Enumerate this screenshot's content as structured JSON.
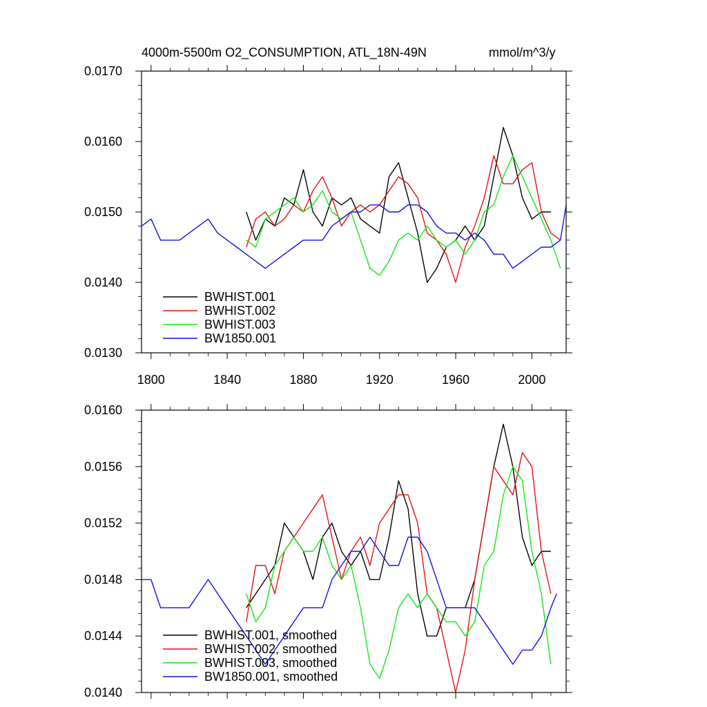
{
  "colors": {
    "BWHIST.001": "#000000",
    "BWHIST.002": "#e8110f",
    "BWHIST.003": "#11e811",
    "BW1850.001": "#1010e8"
  },
  "chart_data": [
    {
      "type": "line",
      "title": "4000m-5500m O2_CONSUMPTION, ATL_18N-49N",
      "units": "mmol/m^3/y",
      "xlim": [
        1795,
        2018
      ],
      "ylim": [
        0.013,
        0.017
      ],
      "x_ticks": [
        1800,
        1840,
        1880,
        1920,
        1960,
        2000
      ],
      "x_tick_labels": [
        "1800",
        "1840",
        "1880",
        "1920",
        "1960",
        "2000"
      ],
      "y_ticks": [
        0.013,
        0.014,
        0.015,
        0.016,
        0.017
      ],
      "y_tick_labels": [
        "0.0130",
        "0.0140",
        "0.0150",
        "0.0160",
        "0.0170"
      ],
      "legend": "bottom-left",
      "series": [
        {
          "name": "BWHIST.001",
          "label": "BWHIST.001",
          "x": [
            1850,
            1855,
            1860,
            1865,
            1870,
            1875,
            1880,
            1885,
            1890,
            1895,
            1900,
            1905,
            1910,
            1915,
            1920,
            1925,
            1930,
            1935,
            1940,
            1945,
            1950,
            1955,
            1960,
            1965,
            1970,
            1975,
            1980,
            1985,
            1990,
            1995,
            2000,
            2005,
            2010
          ],
          "y": [
            0.015,
            0.0146,
            0.0149,
            0.0148,
            0.0152,
            0.0151,
            0.0156,
            0.015,
            0.0148,
            0.0152,
            0.0151,
            0.0152,
            0.0149,
            0.0148,
            0.0147,
            0.0155,
            0.0157,
            0.0152,
            0.0147,
            0.014,
            0.0142,
            0.0145,
            0.0146,
            0.0148,
            0.0146,
            0.0148,
            0.0155,
            0.0162,
            0.0158,
            0.0152,
            0.0149,
            0.015,
            0.015
          ]
        },
        {
          "name": "BWHIST.002",
          "label": "BWHIST.002",
          "x": [
            1850,
            1855,
            1860,
            1865,
            1870,
            1875,
            1880,
            1885,
            1890,
            1895,
            1900,
            1905,
            1910,
            1915,
            1920,
            1925,
            1930,
            1935,
            1940,
            1945,
            1950,
            1955,
            1960,
            1965,
            1970,
            1975,
            1980,
            1985,
            1990,
            1995,
            2000,
            2005,
            2010,
            2015
          ],
          "y": [
            0.0145,
            0.0149,
            0.015,
            0.0148,
            0.0149,
            0.0151,
            0.015,
            0.0153,
            0.0155,
            0.0152,
            0.0148,
            0.015,
            0.0151,
            0.015,
            0.0151,
            0.0153,
            0.0155,
            0.0154,
            0.0152,
            0.0147,
            0.0146,
            0.0144,
            0.014,
            0.0145,
            0.0148,
            0.0152,
            0.0158,
            0.0154,
            0.0154,
            0.0156,
            0.0157,
            0.015,
            0.0147,
            0.0146
          ]
        },
        {
          "name": "BWHIST.003",
          "label": "BWHIST.003",
          "x": [
            1850,
            1855,
            1860,
            1865,
            1870,
            1875,
            1880,
            1885,
            1890,
            1895,
            1900,
            1905,
            1910,
            1915,
            1920,
            1925,
            1930,
            1935,
            1940,
            1945,
            1950,
            1955,
            1960,
            1965,
            1970,
            1975,
            1980,
            1985,
            1990,
            1995,
            2000,
            2005,
            2010,
            2015
          ],
          "y": [
            0.0146,
            0.0145,
            0.0149,
            0.015,
            0.0151,
            0.0152,
            0.015,
            0.0151,
            0.0153,
            0.015,
            0.0149,
            0.015,
            0.0146,
            0.0142,
            0.0141,
            0.0143,
            0.0146,
            0.0147,
            0.0146,
            0.0148,
            0.0146,
            0.0145,
            0.0146,
            0.0144,
            0.0146,
            0.015,
            0.0151,
            0.0155,
            0.0158,
            0.0155,
            0.0152,
            0.0149,
            0.0146,
            0.0142
          ]
        },
        {
          "name": "BW1850.001",
          "label": "BW1850.001",
          "x": [
            1795,
            1800,
            1805,
            1810,
            1815,
            1820,
            1825,
            1830,
            1835,
            1840,
            1845,
            1850,
            1855,
            1860,
            1865,
            1870,
            1875,
            1880,
            1885,
            1890,
            1895,
            1900,
            1905,
            1910,
            1915,
            1920,
            1925,
            1930,
            1935,
            1940,
            1945,
            1950,
            1955,
            1960,
            1965,
            1970,
            1975,
            1980,
            1985,
            1990,
            1995,
            2000,
            2005,
            2010,
            2015,
            2018
          ],
          "y": [
            0.0148,
            0.0149,
            0.0146,
            0.0146,
            0.0146,
            0.0147,
            0.0148,
            0.0149,
            0.0147,
            0.0146,
            0.0145,
            0.0144,
            0.0143,
            0.0142,
            0.0143,
            0.0144,
            0.0145,
            0.0146,
            0.0146,
            0.0146,
            0.0148,
            0.0149,
            0.015,
            0.015,
            0.0151,
            0.0151,
            0.015,
            0.015,
            0.0151,
            0.0151,
            0.015,
            0.0148,
            0.0147,
            0.0147,
            0.0146,
            0.0147,
            0.0146,
            0.0144,
            0.0144,
            0.0142,
            0.0143,
            0.0144,
            0.0145,
            0.0145,
            0.0146,
            0.0151
          ]
        }
      ]
    },
    {
      "type": "line",
      "title": "",
      "xlim": [
        1795,
        2018
      ],
      "ylim": [
        0.014,
        0.016
      ],
      "x_ticks": [
        1800,
        1840,
        1880,
        1920,
        1960,
        2000
      ],
      "y_ticks": [
        0.014,
        0.0144,
        0.0148,
        0.0152,
        0.0156,
        0.016
      ],
      "y_tick_labels": [
        "0.0140",
        "0.0144",
        "0.0148",
        "0.0152",
        "0.0156",
        "0.0160"
      ],
      "legend": "bottom-left",
      "series": [
        {
          "name": "BWHIST.001",
          "label": "BWHIST.001, smoothed",
          "x": [
            1850,
            1855,
            1860,
            1865,
            1870,
            1875,
            1880,
            1885,
            1890,
            1895,
            1900,
            1905,
            1910,
            1915,
            1920,
            1925,
            1930,
            1935,
            1940,
            1945,
            1950,
            1955,
            1960,
            1965,
            1970,
            1975,
            1980,
            1985,
            1990,
            1995,
            2000,
            2005,
            2010
          ],
          "y": [
            0.0146,
            0.0147,
            0.0148,
            0.0149,
            0.0152,
            0.0151,
            0.015,
            0.0148,
            0.0151,
            0.0152,
            0.015,
            0.0149,
            0.015,
            0.0148,
            0.0148,
            0.0151,
            0.0155,
            0.0153,
            0.0147,
            0.0144,
            0.0144,
            0.0146,
            0.0146,
            0.0146,
            0.0148,
            0.0152,
            0.0156,
            0.0159,
            0.0156,
            0.0151,
            0.0149,
            0.015,
            0.015
          ]
        },
        {
          "name": "BWHIST.002",
          "label": "BWHIST.002, smoothed",
          "x": [
            1850,
            1855,
            1860,
            1865,
            1870,
            1875,
            1880,
            1885,
            1890,
            1895,
            1900,
            1905,
            1910,
            1915,
            1920,
            1925,
            1930,
            1935,
            1940,
            1945,
            1950,
            1955,
            1960,
            1965,
            1970,
            1975,
            1980,
            1985,
            1990,
            1995,
            2000,
            2005,
            2010
          ],
          "y": [
            0.0145,
            0.0149,
            0.0149,
            0.0147,
            0.015,
            0.0151,
            0.0152,
            0.0153,
            0.0154,
            0.0151,
            0.0148,
            0.015,
            0.0151,
            0.0149,
            0.0152,
            0.0153,
            0.0154,
            0.0154,
            0.0152,
            0.0147,
            0.0146,
            0.0143,
            0.014,
            0.0143,
            0.0148,
            0.0152,
            0.0156,
            0.0155,
            0.0154,
            0.0157,
            0.0156,
            0.015,
            0.0147
          ]
        },
        {
          "name": "BWHIST.003",
          "label": "BWHIST.003, smoothed",
          "x": [
            1850,
            1855,
            1860,
            1865,
            1870,
            1875,
            1880,
            1885,
            1890,
            1895,
            1900,
            1905,
            1910,
            1915,
            1920,
            1925,
            1930,
            1935,
            1940,
            1945,
            1950,
            1955,
            1960,
            1965,
            1970,
            1975,
            1980,
            1985,
            1990,
            1995,
            2000,
            2005,
            2010
          ],
          "y": [
            0.0147,
            0.0145,
            0.0146,
            0.0149,
            0.015,
            0.0151,
            0.015,
            0.015,
            0.0151,
            0.0149,
            0.0148,
            0.0149,
            0.0146,
            0.0142,
            0.0141,
            0.0143,
            0.0146,
            0.0147,
            0.0146,
            0.0147,
            0.0146,
            0.0145,
            0.0145,
            0.0144,
            0.0145,
            0.0149,
            0.015,
            0.0154,
            0.0156,
            0.0155,
            0.015,
            0.0147,
            0.0142
          ]
        },
        {
          "name": "BW1850.001",
          "label": "BW1850.001, smoothed",
          "x": [
            1795,
            1800,
            1805,
            1810,
            1815,
            1820,
            1825,
            1830,
            1835,
            1840,
            1845,
            1850,
            1855,
            1860,
            1865,
            1870,
            1875,
            1880,
            1885,
            1890,
            1895,
            1900,
            1905,
            1910,
            1915,
            1920,
            1925,
            1930,
            1935,
            1940,
            1945,
            1950,
            1955,
            1960,
            1965,
            1970,
            1975,
            1980,
            1985,
            1990,
            1995,
            2000,
            2005,
            2010,
            2013
          ],
          "y": [
            0.0148,
            0.0148,
            0.0146,
            0.0146,
            0.0146,
            0.0146,
            0.0147,
            0.0148,
            0.0147,
            0.0146,
            0.0145,
            0.0144,
            0.0143,
            0.0142,
            0.0143,
            0.0144,
            0.0145,
            0.0146,
            0.0146,
            0.0146,
            0.0148,
            0.0149,
            0.015,
            0.015,
            0.0151,
            0.015,
            0.0149,
            0.0149,
            0.0151,
            0.0151,
            0.015,
            0.0148,
            0.0146,
            0.0146,
            0.0146,
            0.0146,
            0.0145,
            0.0144,
            0.0143,
            0.0142,
            0.0143,
            0.0143,
            0.0144,
            0.0146,
            0.0147
          ]
        }
      ]
    }
  ]
}
